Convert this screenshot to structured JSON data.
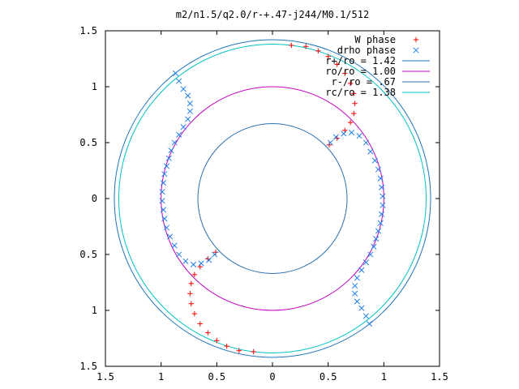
{
  "chart_data": {
    "type": "scatter",
    "title": "m2/n1.5/q2.0/r-+.47-j244/M0.1/512",
    "xlim": [
      -1.5,
      1.5
    ],
    "ylim": [
      -1.5,
      1.5
    ],
    "xticks": [
      -1.5,
      -1,
      -0.5,
      0,
      0.5,
      1,
      1.5
    ],
    "yticks": [
      -1.5,
      -1,
      -0.5,
      0,
      0.5,
      1,
      1.5
    ],
    "xtick_labels": [
      "1.5",
      "1",
      "0.5",
      "0",
      "0.5",
      "1",
      "1.5"
    ],
    "ytick_labels": [
      "1.5",
      "1",
      "0.5",
      "0",
      "0.5",
      "1",
      "1.5"
    ],
    "legend_position": "top-right",
    "circles": [
      {
        "label": "r+/ro = 1.42",
        "radius": 1.42,
        "color": "#1f73b8"
      },
      {
        "label": "ro/ro = 1.00",
        "radius": 1.0,
        "color": "#c000c0"
      },
      {
        "label": "r-/ro = .67",
        "radius": 0.67,
        "color": "#2a6fb0"
      },
      {
        "label": "rc/ro = 1.38",
        "radius": 1.38,
        "color": "#00c0c0"
      }
    ],
    "series": [
      {
        "name": "W phase",
        "marker": "plus",
        "color": "#ff0000",
        "points": [
          [
            0.17,
            1.37
          ],
          [
            0.3,
            1.36
          ],
          [
            0.41,
            1.32
          ],
          [
            0.5,
            1.27
          ],
          [
            0.58,
            1.2
          ],
          [
            0.65,
            1.12
          ],
          [
            0.7,
            1.03
          ],
          [
            0.73,
            0.94
          ],
          [
            0.74,
            0.85
          ],
          [
            0.73,
            0.76
          ],
          [
            0.7,
            0.68
          ],
          [
            0.65,
            0.61
          ],
          [
            0.58,
            0.54
          ],
          [
            0.51,
            0.48
          ],
          [
            -0.17,
            -1.37
          ],
          [
            -0.3,
            -1.36
          ],
          [
            -0.41,
            -1.32
          ],
          [
            -0.5,
            -1.27
          ],
          [
            -0.58,
            -1.2
          ],
          [
            -0.65,
            -1.12
          ],
          [
            -0.7,
            -1.03
          ],
          [
            -0.73,
            -0.94
          ],
          [
            -0.74,
            -0.85
          ],
          [
            -0.73,
            -0.76
          ],
          [
            -0.7,
            -0.68
          ],
          [
            -0.65,
            -0.61
          ],
          [
            -0.58,
            -0.54
          ],
          [
            -0.51,
            -0.48
          ]
        ]
      },
      {
        "name": "drho phase",
        "marker": "cross",
        "color": "#2080e8",
        "points": [
          [
            -0.87,
            1.12
          ],
          [
            -0.84,
            1.05
          ],
          [
            -0.8,
            0.98
          ],
          [
            -0.76,
            0.92
          ],
          [
            -0.74,
            0.85
          ],
          [
            -0.74,
            0.78
          ],
          [
            -0.76,
            0.71
          ],
          [
            -0.8,
            0.64
          ],
          [
            -0.84,
            0.57
          ],
          [
            -0.88,
            0.5
          ],
          [
            -0.91,
            0.43
          ],
          [
            -0.93,
            0.36
          ],
          [
            -0.95,
            0.29
          ],
          [
            -0.97,
            0.22
          ],
          [
            -0.98,
            0.14
          ],
          [
            -0.99,
            0.06
          ],
          [
            -0.99,
            -0.02
          ],
          [
            -0.98,
            -0.1
          ],
          [
            -0.97,
            -0.18
          ],
          [
            -0.95,
            -0.26
          ],
          [
            -0.92,
            -0.34
          ],
          [
            -0.88,
            -0.42
          ],
          [
            -0.84,
            -0.5
          ],
          [
            -0.78,
            -0.56
          ],
          [
            -0.71,
            -0.59
          ],
          [
            -0.64,
            -0.58
          ],
          [
            -0.57,
            -0.55
          ],
          [
            -0.52,
            -0.5
          ],
          [
            0.87,
            -1.12
          ],
          [
            0.84,
            -1.05
          ],
          [
            0.8,
            -0.98
          ],
          [
            0.76,
            -0.92
          ],
          [
            0.74,
            -0.85
          ],
          [
            0.74,
            -0.78
          ],
          [
            0.76,
            -0.71
          ],
          [
            0.8,
            -0.64
          ],
          [
            0.84,
            -0.57
          ],
          [
            0.88,
            -0.5
          ],
          [
            0.91,
            -0.43
          ],
          [
            0.93,
            -0.36
          ],
          [
            0.95,
            -0.29
          ],
          [
            0.97,
            -0.22
          ],
          [
            0.98,
            -0.14
          ],
          [
            0.99,
            -0.06
          ],
          [
            0.99,
            0.02
          ],
          [
            0.98,
            0.1
          ],
          [
            0.97,
            0.18
          ],
          [
            0.95,
            0.26
          ],
          [
            0.92,
            0.34
          ],
          [
            0.88,
            0.42
          ],
          [
            0.84,
            0.5
          ],
          [
            0.78,
            0.56
          ],
          [
            0.71,
            0.59
          ],
          [
            0.64,
            0.58
          ],
          [
            0.57,
            0.55
          ],
          [
            0.52,
            0.5
          ]
        ]
      }
    ]
  }
}
